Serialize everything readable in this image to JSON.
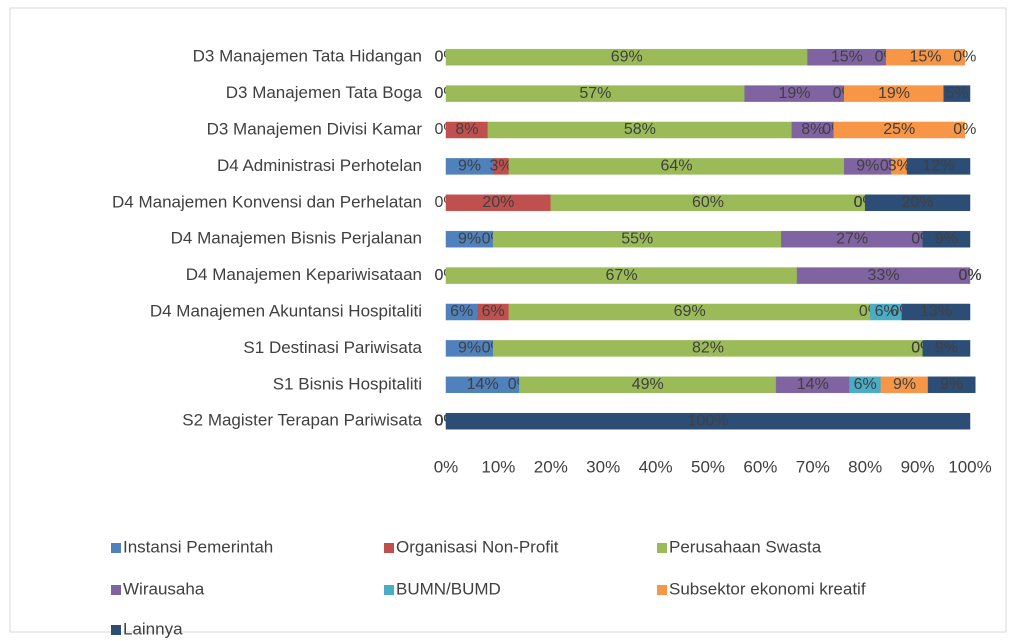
{
  "chart_data": {
    "type": "stacked_barh",
    "categories": [
      "D3 Manajemen Tata Hidangan",
      "D3 Manajemen Tata Boga",
      "D3 Manajemen Divisi Kamar",
      "D4 Administrasi Perhotelan",
      "D4 Manajemen Konvensi dan Perhelatan",
      "D4 Manajemen Bisnis Perjalanan",
      "D4 Manajemen Kepariwisataan",
      "D4 Manajemen Akuntansi Hospitaliti",
      "S1 Destinasi Pariwisata",
      "S1 Bisnis Hospitaliti",
      "S2 Magister Terapan Pariwisata"
    ],
    "series": [
      {
        "name": "Instansi Pemerintah",
        "color": "#4f81bd",
        "values": [
          0,
          0,
          0,
          9,
          0,
          9,
          0,
          6,
          9,
          14,
          0
        ],
        "value_labels": [
          "0%",
          "0%",
          "0%",
          "9%",
          "0%",
          "9%",
          "0%",
          "6%",
          "9%",
          "14%",
          "0%"
        ]
      },
      {
        "name": "Organisasi Non-Profit",
        "color": "#c0504d",
        "values": [
          0,
          0,
          8,
          3,
          20,
          0,
          0,
          6,
          0,
          0,
          0
        ],
        "value_labels": [
          "0%",
          "0%",
          "8%",
          "3%",
          "20%",
          "0%",
          "0%",
          "6%",
          "0%",
          "0%",
          "0%"
        ]
      },
      {
        "name": "Perusahaan Swasta",
        "color": "#9bbb59",
        "values": [
          69,
          57,
          58,
          64,
          60,
          55,
          67,
          69,
          82,
          49,
          0
        ],
        "value_labels": [
          "69%",
          "57%",
          "58%",
          "64%",
          "60%",
          "55%",
          "67%",
          "69%",
          "82%",
          "49%",
          "0%"
        ]
      },
      {
        "name": "Wirausaha",
        "color": "#8064a2",
        "values": [
          15,
          19,
          8,
          9,
          0,
          27,
          33,
          0,
          0,
          14,
          0
        ],
        "value_labels": [
          "15%",
          "19%",
          "8%",
          "9%",
          "0%",
          "27%",
          "33%",
          "0%",
          "0%",
          "14%",
          "0%"
        ]
      },
      {
        "name": "BUMN/BUMD",
        "color": "#4bacc6",
        "values": [
          0,
          0,
          0,
          0,
          0,
          0,
          0,
          6,
          0,
          6,
          0
        ],
        "value_labels": [
          "0%",
          "0%",
          "0%",
          "0%",
          "0%",
          "0%",
          "0%",
          "6%",
          "0%",
          "6%",
          "0%"
        ]
      },
      {
        "name": "Subsektor ekonomi kreatif",
        "color": "#f79646",
        "values": [
          15,
          19,
          25,
          3,
          0,
          0,
          0,
          0,
          0,
          9,
          0
        ],
        "value_labels": [
          "15%",
          "19%",
          "25%",
          "3%",
          "0%",
          "0%",
          "0%",
          "0%",
          "0%",
          "9%",
          "0%"
        ]
      },
      {
        "name": "Lainnya",
        "color": "#2c4d75",
        "values": [
          0,
          5,
          0,
          12,
          20,
          9,
          0,
          13,
          9,
          9,
          100
        ],
        "value_labels": [
          "0%",
          "5%",
          "0%",
          "12%",
          "20%",
          "9%",
          "0%",
          "13%",
          "9%",
          "9%",
          "100%"
        ]
      }
    ],
    "xlim": [
      0,
      100
    ],
    "xticks": [
      {
        "value": 0,
        "label": "0%"
      },
      {
        "value": 10,
        "label": "10%"
      },
      {
        "value": 20,
        "label": "20%"
      },
      {
        "value": 30,
        "label": "30%"
      },
      {
        "value": 40,
        "label": "40%"
      },
      {
        "value": 50,
        "label": "50%"
      },
      {
        "value": 60,
        "label": "60%"
      },
      {
        "value": 70,
        "label": "70%"
      },
      {
        "value": 80,
        "label": "80%"
      },
      {
        "value": 90,
        "label": "90%"
      },
      {
        "value": 100,
        "label": "100%"
      }
    ],
    "legend": "bottom"
  }
}
